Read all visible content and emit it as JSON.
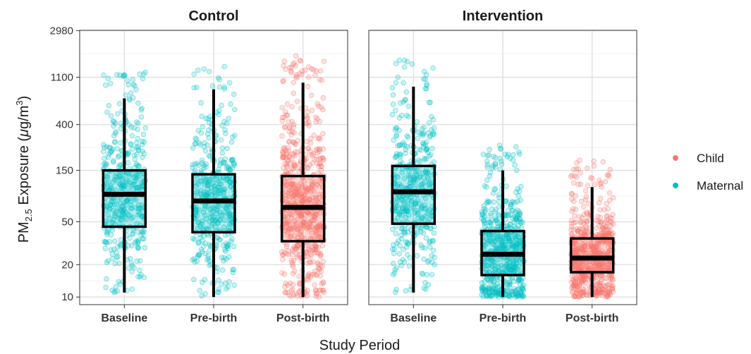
{
  "chart_data": {
    "type": "box",
    "xlabel": "Study Period",
    "ylabel": {
      "main": "PM",
      "sub": "2.5",
      "unit_open": " Exposure (",
      "mu": "μ",
      "unit_rest": "g/m",
      "sup": "3",
      "close": ")"
    },
    "y_scale": "log",
    "ylim": [
      8.5,
      3000
    ],
    "y_ticks": [
      10,
      20,
      50,
      150,
      400,
      1100,
      2980
    ],
    "categories": [
      "Baseline",
      "Pre-birth",
      "Post-birth"
    ],
    "legend": {
      "position": "right",
      "entries": [
        {
          "name": "Child",
          "color": "#F8766D"
        },
        {
          "name": "Maternal",
          "color": "#00BFC4"
        }
      ]
    },
    "panels": [
      {
        "title": "Control",
        "boxes": [
          {
            "category": "Baseline",
            "group": "Maternal",
            "whisker_low": 11,
            "q1": 45,
            "median": 90,
            "q3": 150,
            "whisker_high": 700
          },
          {
            "category": "Pre-birth",
            "group": "Maternal",
            "whisker_low": 10,
            "q1": 40,
            "median": 78,
            "q3": 138,
            "whisker_high": 850
          },
          {
            "category": "Post-birth",
            "group": "Child",
            "whisker_low": 10,
            "q1": 33,
            "median": 68,
            "q3": 133,
            "whisker_high": 980
          }
        ]
      },
      {
        "title": "Intervention",
        "boxes": [
          {
            "category": "Baseline",
            "group": "Maternal",
            "whisker_low": 11,
            "q1": 48,
            "median": 95,
            "q3": 165,
            "whisker_high": 900
          },
          {
            "category": "Pre-birth",
            "group": "Maternal",
            "whisker_low": 10,
            "q1": 16,
            "median": 25,
            "q3": 41,
            "whisker_high": 150
          },
          {
            "category": "Post-birth",
            "group": "Child",
            "whisker_low": 10,
            "q1": 17,
            "median": 23,
            "q3": 35,
            "whisker_high": 105
          }
        ]
      }
    ]
  }
}
